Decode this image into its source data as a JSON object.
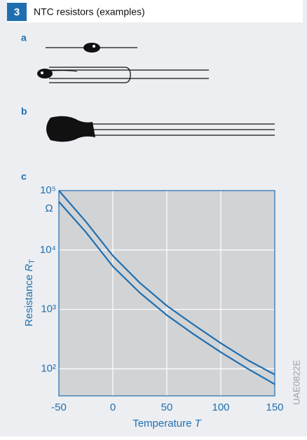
{
  "header": {
    "number": "3",
    "title": "NTC resistors (examples)"
  },
  "panels": [
    "a",
    "b",
    "c"
  ],
  "code": "UAE0822E",
  "chart_data": {
    "type": "line",
    "x_label": "Temperature",
    "x_label_symbol": "T",
    "y_label": "Resistance",
    "y_label_symbol": "R",
    "y_label_subscript": "T",
    "y_unit": "Ω",
    "x": [
      -50,
      -25,
      0,
      25,
      50,
      75,
      100,
      125,
      150
    ],
    "series": [
      {
        "color": "#1f6fb0",
        "values": [
          100000,
          30000,
          8000,
          2800,
          1150,
          550,
          270,
          140,
          80
        ]
      },
      {
        "color": "#1f6fb0",
        "values": [
          65000,
          20000,
          5300,
          1900,
          800,
          380,
          190,
          100,
          55
        ]
      }
    ],
    "xlim": [
      -50,
      150
    ],
    "xticks": [
      -50,
      0,
      50,
      100,
      150
    ],
    "ylim": [
      35,
      100000
    ],
    "log_y": true,
    "yticks": [
      {
        "value": 100,
        "label": "10²"
      },
      {
        "value": 1000,
        "label": "10³"
      },
      {
        "value": 10000,
        "label": "10⁴"
      },
      {
        "value": 100000,
        "label": "10⁵"
      }
    ],
    "grid": true,
    "plot_color": "#d2d3d5"
  }
}
